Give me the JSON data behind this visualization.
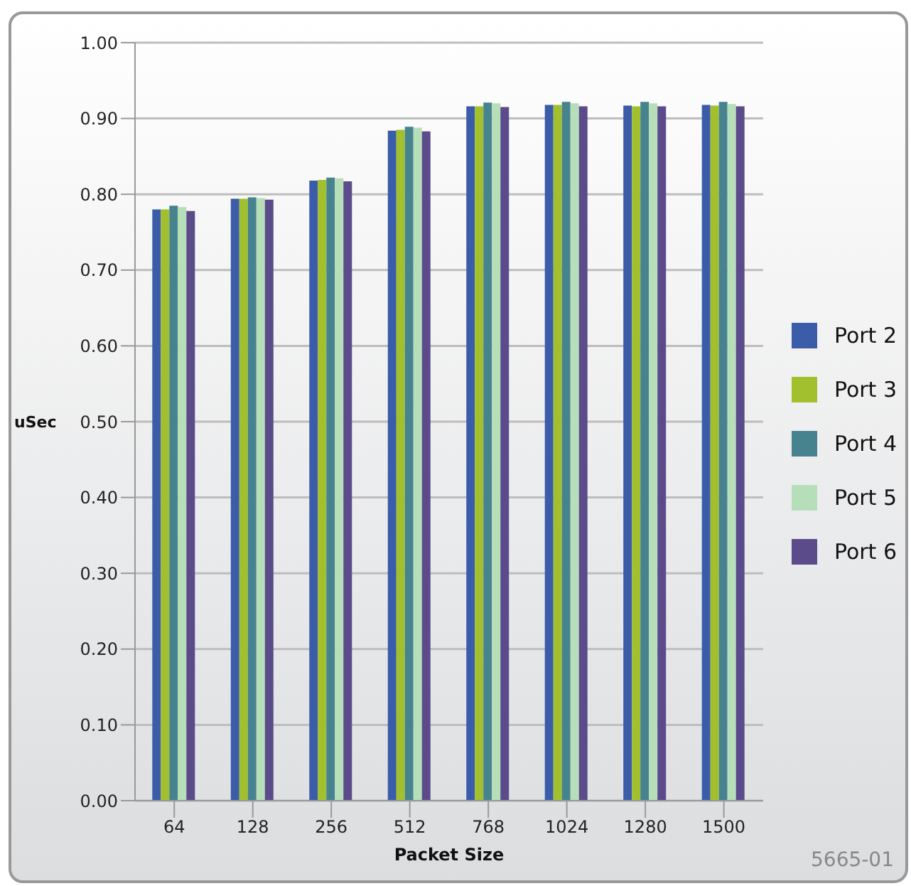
{
  "chart_data": {
    "type": "bar",
    "xlabel": "Packet Size",
    "ylabel": "uSec",
    "categories": [
      "64",
      "128",
      "256",
      "512",
      "768",
      "1024",
      "1280",
      "1500"
    ],
    "series": [
      {
        "name": "Port 2",
        "color": "#3b5ca8",
        "values": [
          0.78,
          0.794,
          0.818,
          0.884,
          0.916,
          0.918,
          0.917,
          0.918
        ]
      },
      {
        "name": "Port 3",
        "color": "#a2c02d",
        "values": [
          0.78,
          0.794,
          0.819,
          0.885,
          0.916,
          0.918,
          0.916,
          0.917
        ]
      },
      {
        "name": "Port 4",
        "color": "#47838f",
        "values": [
          0.785,
          0.796,
          0.822,
          0.889,
          0.921,
          0.922,
          0.922,
          0.922
        ]
      },
      {
        "name": "Port 5",
        "color": "#b6dfb9",
        "values": [
          0.783,
          0.795,
          0.821,
          0.888,
          0.92,
          0.92,
          0.92,
          0.919
        ]
      },
      {
        "name": "Port 6",
        "color": "#5b4b8a",
        "values": [
          0.778,
          0.793,
          0.817,
          0.883,
          0.915,
          0.916,
          0.916,
          0.916
        ]
      }
    ],
    "ylim": [
      0,
      1
    ],
    "yticks": [
      {
        "value": 0,
        "label": "0.00"
      },
      {
        "value": 0.1,
        "label": "0.10"
      },
      {
        "value": 0.2,
        "label": "0.20"
      },
      {
        "value": 0.3,
        "label": "0.30"
      },
      {
        "value": 0.4,
        "label": "0.40"
      },
      {
        "value": 0.5,
        "label": "0.50"
      },
      {
        "value": 0.6,
        "label": "0.60"
      },
      {
        "value": 0.7,
        "label": "0.70"
      },
      {
        "value": 0.8,
        "label": "0.80"
      },
      {
        "value": 0.9,
        "label": "0.90"
      },
      {
        "value": 1,
        "label": "1.00"
      }
    ],
    "grid": "y",
    "legend": "right",
    "annotations": [
      "5665-01"
    ]
  }
}
